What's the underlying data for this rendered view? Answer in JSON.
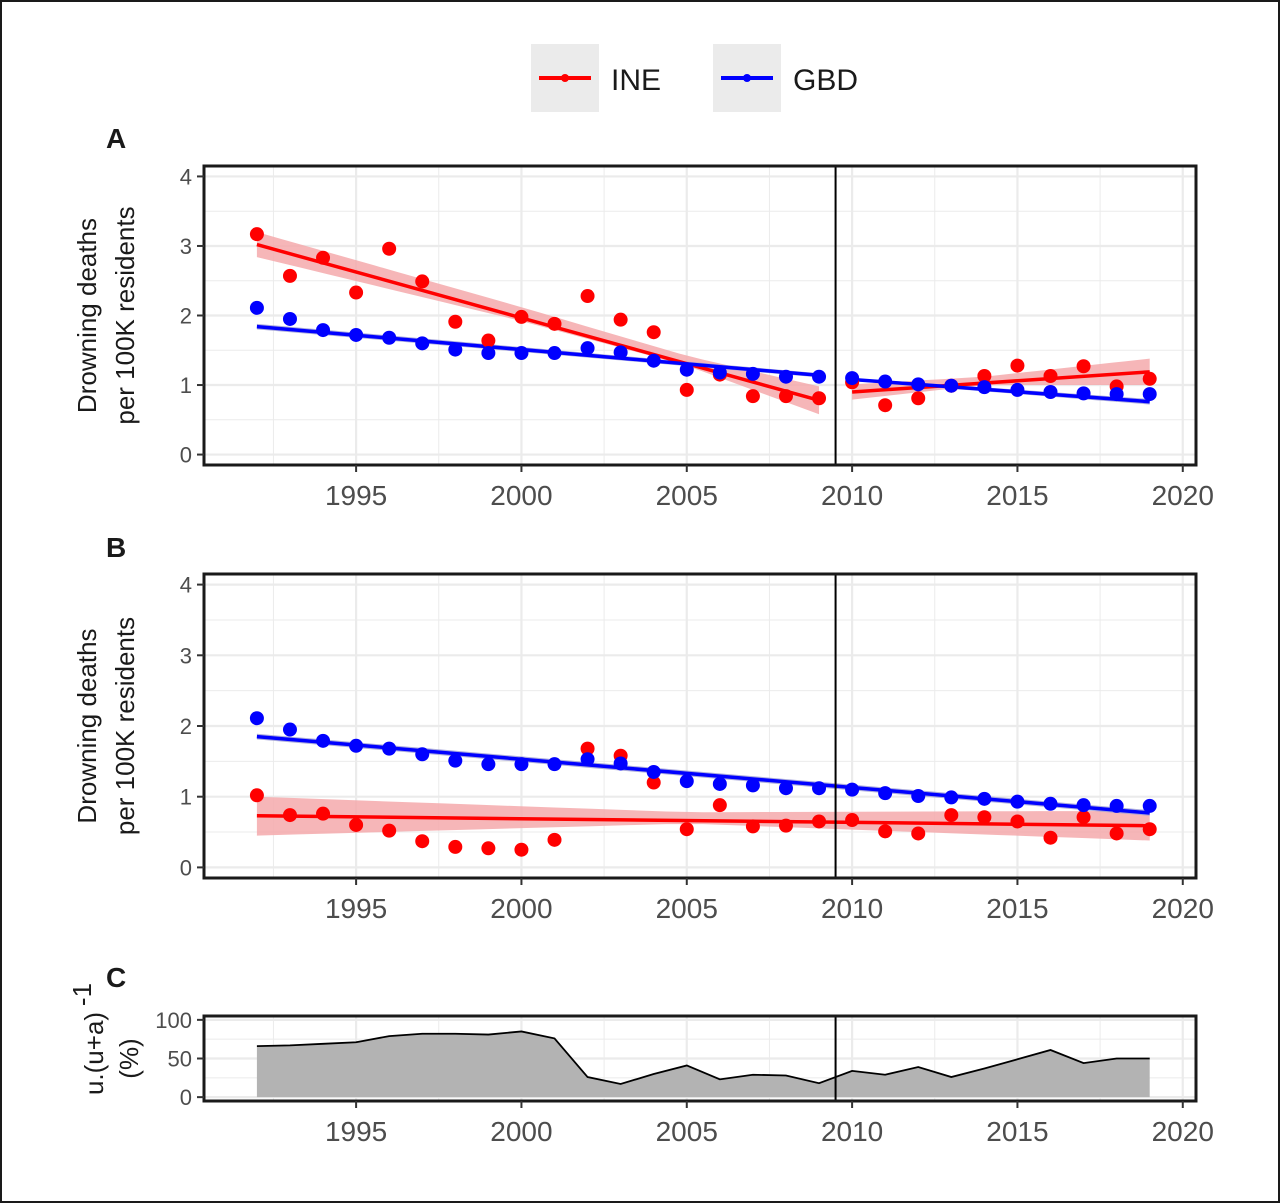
{
  "colors": {
    "INE": "#ff0000",
    "GBD": "#0000ff",
    "ribbon_INE": "#f4a9ab",
    "ribbon_GBD": "#9e9ed6",
    "area": "#b3b3b3",
    "legend_key_bg": "#ebebeb",
    "grid": "#ebebeb",
    "frame": "#1a1a1a"
  },
  "legend": {
    "items": [
      {
        "label": "INE",
        "color": "#ff0000"
      },
      {
        "label": "GBD",
        "color": "#0000ff"
      }
    ]
  },
  "chart_data": [
    {
      "panel": "A",
      "type": "scatter",
      "ylabel": [
        "Drowning deaths",
        "per 100K residents"
      ],
      "xlim": [
        1990.4,
        2020.4
      ],
      "ylim": [
        -0.15,
        4.15
      ],
      "x_ticks": [
        1995,
        2000,
        2005,
        2010,
        2015,
        2020
      ],
      "y_ticks": [
        0,
        1,
        2,
        3,
        4
      ],
      "grid": true,
      "vline_x": 2009.5,
      "series": [
        {
          "name": "INE",
          "x": [
            1992,
            1993,
            1994,
            1995,
            1996,
            1997,
            1998,
            1999,
            2000,
            2001,
            2002,
            2003,
            2004,
            2005,
            2006,
            2007,
            2008,
            2009,
            2010,
            2011,
            2012,
            2013,
            2014,
            2015,
            2016,
            2017,
            2018,
            2019
          ],
          "y": [
            3.17,
            2.57,
            2.83,
            2.33,
            2.96,
            2.49,
            1.91,
            1.64,
            1.98,
            1.88,
            2.28,
            1.94,
            1.76,
            0.93,
            1.15,
            0.84,
            0.84,
            0.81,
            1.04,
            0.71,
            0.81,
            0.99,
            1.13,
            1.28,
            1.13,
            1.27,
            0.98,
            1.09
          ],
          "fits": [
            {
              "x": [
                1992,
                2009
              ],
              "y": [
                3.02,
                0.78
              ],
              "band_lo": [
                [
                  1992,
                  2.84
                ],
                [
                  2000,
                  1.92
                ],
                [
                  2005,
                  1.28
                ],
                [
                  2009,
                  0.58
                ]
              ],
              "band_hi": [
                [
                  1992,
                  3.2
                ],
                [
                  2000,
                  2.12
                ],
                [
                  2005,
                  1.42
                ],
                [
                  2009,
                  0.98
                ]
              ]
            },
            {
              "x": [
                2010,
                2019
              ],
              "y": [
                0.9,
                1.19
              ],
              "band_lo": [
                [
                  2010,
                  0.79
                ],
                [
                  2014,
                  1.0
                ],
                [
                  2019,
                  1.0
                ]
              ],
              "band_hi": [
                [
                  2010,
                  1.01
                ],
                [
                  2014,
                  1.12
                ],
                [
                  2019,
                  1.38
                ]
              ]
            }
          ]
        },
        {
          "name": "GBD",
          "x": [
            1992,
            1993,
            1994,
            1995,
            1996,
            1997,
            1998,
            1999,
            2000,
            2001,
            2002,
            2003,
            2004,
            2005,
            2006,
            2007,
            2008,
            2009,
            2010,
            2011,
            2012,
            2013,
            2014,
            2015,
            2016,
            2017,
            2018,
            2019
          ],
          "y": [
            2.11,
            1.95,
            1.79,
            1.72,
            1.68,
            1.6,
            1.51,
            1.46,
            1.46,
            1.46,
            1.53,
            1.47,
            1.35,
            1.22,
            1.18,
            1.16,
            1.12,
            1.12,
            1.1,
            1.05,
            1.01,
            0.99,
            0.97,
            0.93,
            0.9,
            0.88,
            0.87,
            0.87
          ],
          "fits": [
            {
              "x": [
                1992,
                2009
              ],
              "y": [
                1.84,
                1.14
              ],
              "band_lo": [
                [
                  1992,
                  1.8
                ],
                [
                  2009,
                  1.11
                ]
              ],
              "band_hi": [
                [
                  1992,
                  1.88
                ],
                [
                  2009,
                  1.17
                ]
              ]
            },
            {
              "x": [
                2010,
                2019
              ],
              "y": [
                1.08,
                0.76
              ],
              "band_lo": [
                [
                  2010,
                  1.06
                ],
                [
                  2019,
                  0.72
                ]
              ],
              "band_hi": [
                [
                  2010,
                  1.1
                ],
                [
                  2019,
                  0.8
                ]
              ]
            }
          ]
        }
      ]
    },
    {
      "panel": "B",
      "type": "scatter",
      "ylabel": [
        "Drowning deaths",
        "per 100K residents"
      ],
      "xlim": [
        1990.4,
        2020.4
      ],
      "ylim": [
        -0.15,
        4.15
      ],
      "x_ticks": [
        1995,
        2000,
        2005,
        2010,
        2015,
        2020
      ],
      "y_ticks": [
        0,
        1,
        2,
        3,
        4
      ],
      "grid": true,
      "vline_x": 2009.5,
      "series": [
        {
          "name": "INE",
          "x": [
            1992,
            1993,
            1994,
            1995,
            1996,
            1997,
            1998,
            1999,
            2000,
            2001,
            2002,
            2003,
            2004,
            2005,
            2006,
            2007,
            2008,
            2009,
            2010,
            2011,
            2012,
            2013,
            2014,
            2015,
            2016,
            2017,
            2018,
            2019
          ],
          "y": [
            1.02,
            0.74,
            0.76,
            0.6,
            0.52,
            0.37,
            0.29,
            0.27,
            0.25,
            0.39,
            1.68,
            1.58,
            1.2,
            0.54,
            0.88,
            0.58,
            0.59,
            0.65,
            0.67,
            0.51,
            0.48,
            0.74,
            0.71,
            0.65,
            0.42,
            0.71,
            0.48,
            0.54
          ],
          "fits": [
            {
              "x": [
                1992,
                2019
              ],
              "y": [
                0.73,
                0.59
              ],
              "band_lo": [
                [
                  1992,
                  0.45
                ],
                [
                  2005,
                  0.62
                ],
                [
                  2019,
                  0.38
                ]
              ],
              "band_hi": [
                [
                  1992,
                  1.0
                ],
                [
                  2005,
                  0.78
                ],
                [
                  2019,
                  0.8
                ]
              ]
            }
          ]
        },
        {
          "name": "GBD",
          "x": [
            1992,
            1993,
            1994,
            1995,
            1996,
            1997,
            1998,
            1999,
            2000,
            2001,
            2002,
            2003,
            2004,
            2005,
            2006,
            2007,
            2008,
            2009,
            2010,
            2011,
            2012,
            2013,
            2014,
            2015,
            2016,
            2017,
            2018,
            2019
          ],
          "y": [
            2.11,
            1.95,
            1.79,
            1.72,
            1.68,
            1.6,
            1.51,
            1.46,
            1.46,
            1.46,
            1.53,
            1.47,
            1.35,
            1.22,
            1.18,
            1.16,
            1.12,
            1.12,
            1.1,
            1.05,
            1.01,
            0.99,
            0.97,
            0.93,
            0.9,
            0.88,
            0.87,
            0.87
          ],
          "fits": [
            {
              "x": [
                1992,
                2019
              ],
              "y": [
                1.85,
                0.77
              ],
              "band_lo": [
                [
                  1992,
                  1.81
                ],
                [
                  2019,
                  0.73
                ]
              ],
              "band_hi": [
                [
                  1992,
                  1.89
                ],
                [
                  2019,
                  0.81
                ]
              ]
            }
          ]
        }
      ]
    },
    {
      "panel": "C",
      "type": "area",
      "ylabel_main": "u.(u+a)",
      "ylabel_sup": "-1",
      "ylabel_unit": "(%)",
      "xlim": [
        1990.4,
        2020.4
      ],
      "ylim": [
        -5,
        105
      ],
      "x_ticks": [
        1995,
        2000,
        2005,
        2010,
        2015,
        2020
      ],
      "y_ticks": [
        0,
        50,
        100
      ],
      "grid": true,
      "vline_x": 2009.5,
      "x": [
        1992,
        1993,
        1994,
        1995,
        1996,
        1997,
        1998,
        1999,
        2000,
        2001,
        2002,
        2003,
        2004,
        2005,
        2006,
        2007,
        2008,
        2009,
        2010,
        2011,
        2012,
        2013,
        2014,
        2015,
        2016,
        2017,
        2018,
        2019
      ],
      "values": [
        66,
        67,
        69,
        71,
        79,
        82,
        82,
        81,
        85,
        76,
        26,
        17,
        30,
        41,
        23,
        29,
        28,
        18,
        34,
        29,
        39,
        26,
        37,
        49,
        61,
        44,
        50,
        50
      ]
    }
  ]
}
